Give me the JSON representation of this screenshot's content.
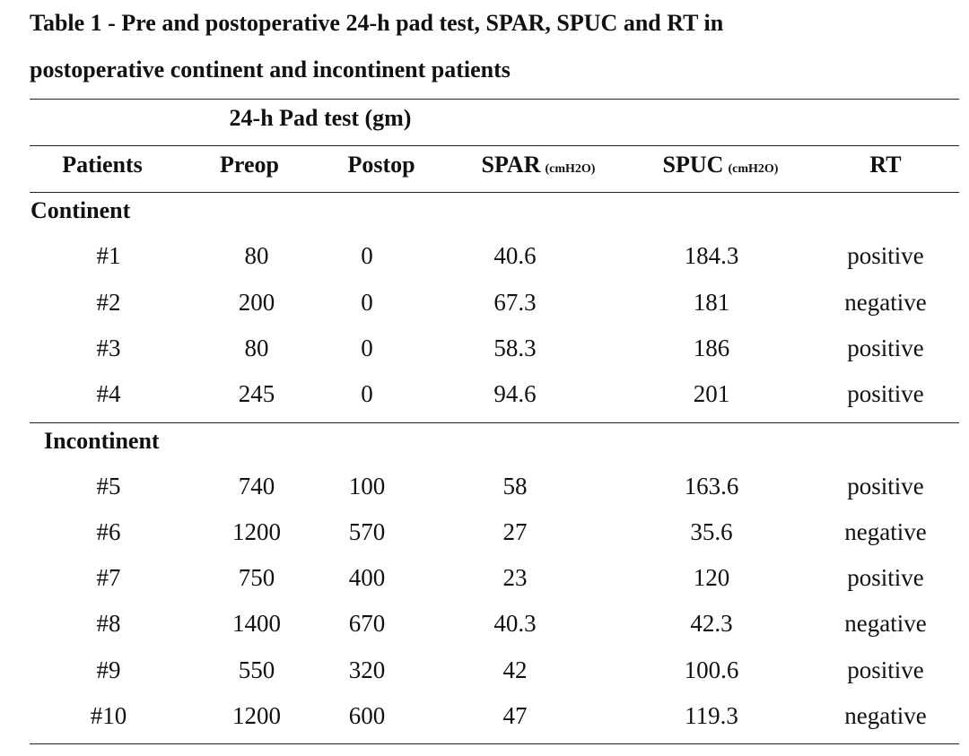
{
  "table": {
    "title_line1": "Table 1 - Pre and postoperative 24-h pad test, SPAR, SPUC and RT in",
    "title_line2": "postoperative continent and incontinent patients",
    "group_header": "24-h Pad test (gm)",
    "columns": {
      "patients": "Patients",
      "preop": "Preop",
      "postop": "Postop",
      "spar": "SPAR",
      "spar_unit": "(cmH2O)",
      "spuc": "SPUC",
      "spuc_unit": "(cmH2O)",
      "rt": "RT"
    },
    "groups": [
      {
        "label": "Continent",
        "rows": [
          {
            "patient": "#1",
            "preop": "80",
            "postop": "0",
            "spar": "40.6",
            "spuc": "184.3",
            "rt": "positive"
          },
          {
            "patient": "#2",
            "preop": "200",
            "postop": "0",
            "spar": "67.3",
            "spuc": "181",
            "rt": "negative"
          },
          {
            "patient": "#3",
            "preop": "80",
            "postop": "0",
            "spar": "58.3",
            "spuc": "186",
            "rt": "positive"
          },
          {
            "patient": "#4",
            "preop": "245",
            "postop": "0",
            "spar": "94.6",
            "spuc": "201",
            "rt": "positive"
          }
        ]
      },
      {
        "label": "Incontinent",
        "rows": [
          {
            "patient": "#5",
            "preop": "740",
            "postop": "100",
            "spar": "58",
            "spuc": "163.6",
            "rt": "positive"
          },
          {
            "patient": "#6",
            "preop": "1200",
            "postop": "570",
            "spar": "27",
            "spuc": "35.6",
            "rt": "negative"
          },
          {
            "patient": "#7",
            "preop": "750",
            "postop": "400",
            "spar": "23",
            "spuc": "120",
            "rt": "positive"
          },
          {
            "patient": "#8",
            "preop": "1400",
            "postop": "670",
            "spar": "40.3",
            "spuc": "42.3",
            "rt": "negative"
          },
          {
            "patient": "#9",
            "preop": "550",
            "postop": "320",
            "spar": "42",
            "spuc": "100.6",
            "rt": "positive"
          },
          {
            "patient": "#10",
            "preop": "1200",
            "postop": "600",
            "spar": "47",
            "spuc": "119.3",
            "rt": "negative"
          }
        ]
      }
    ]
  }
}
